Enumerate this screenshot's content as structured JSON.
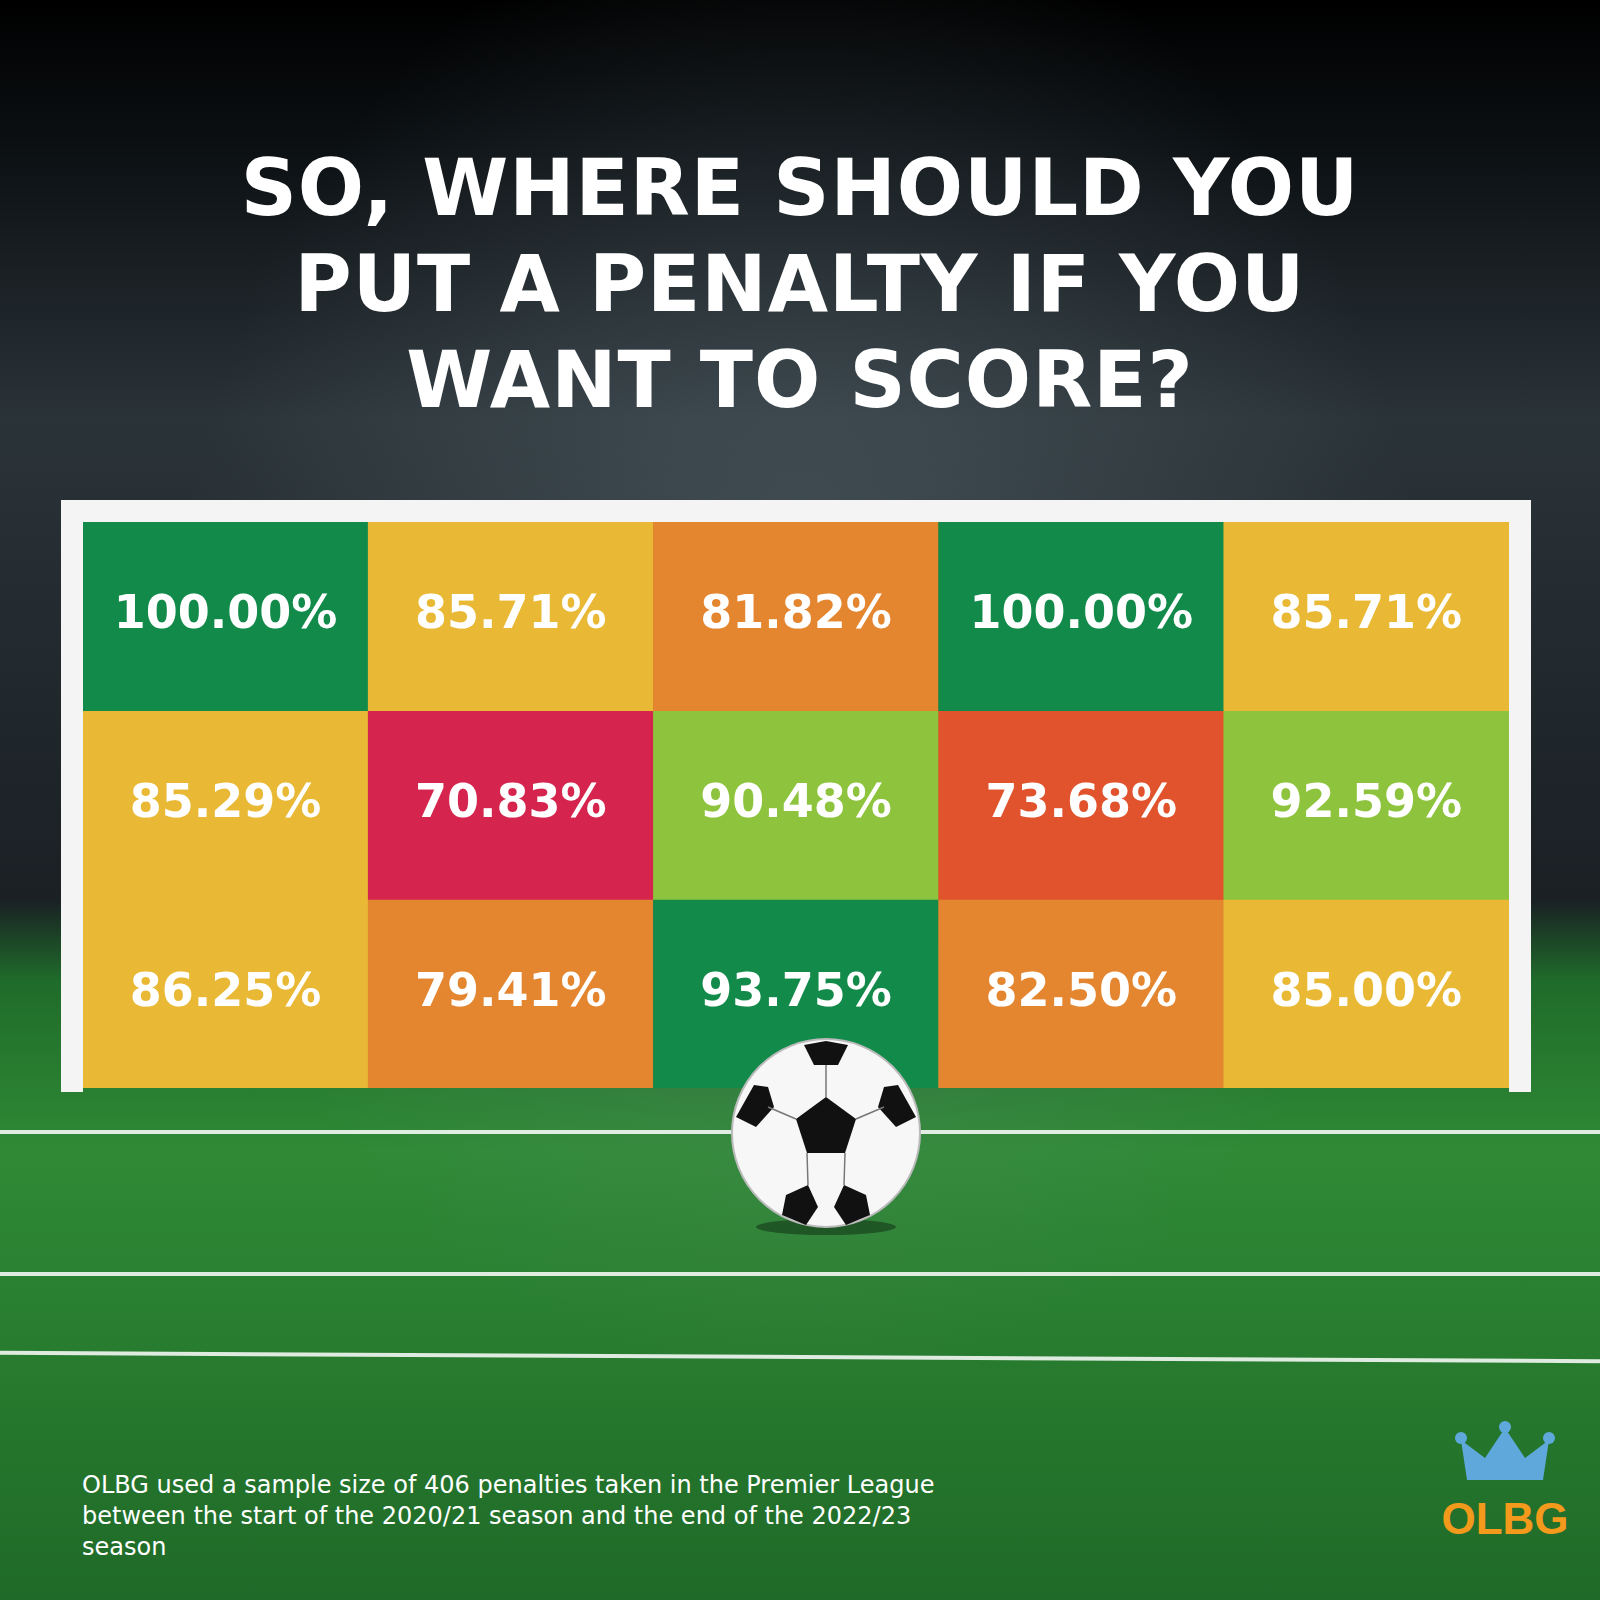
{
  "chart_data": {
    "type": "heatmap",
    "title": "SO, WHERE SHOULD YOU PUT A PENALTY IF YOU WANT TO SCORE?",
    "cells": [
      [
        100.0,
        85.71,
        81.82,
        100.0,
        85.71
      ],
      [
        85.29,
        70.83,
        90.48,
        73.68,
        92.59
      ],
      [
        86.25,
        79.41,
        93.75,
        82.5,
        85.0
      ]
    ],
    "value_labels": [
      [
        "100.00%",
        "85.71%",
        "81.82%",
        "100.00%",
        "85.71%"
      ],
      [
        "85.29%",
        "70.83%",
        "90.48%",
        "73.68%",
        "92.59%"
      ],
      [
        "86.25%",
        "79.41%",
        "93.75%",
        "82.50%",
        "85.00%"
      ]
    ],
    "colors": [
      [
        "#128a4a",
        "#e9b834",
        "#e4852f",
        "#128a4a",
        "#e9b834"
      ],
      [
        "#e9b834",
        "#d5254f",
        "#8ec43d",
        "#e0532c",
        "#8ec43d"
      ],
      [
        "#e9b834",
        "#e4852f",
        "#128a4a",
        "#e4852f",
        "#e9b834"
      ]
    ],
    "data_labels": true,
    "tick_labels": false
  },
  "footnote": "OLBG used a sample size of 406 penalties taken in the Premier League between the start of the 2020/21 season and the end of the 2022/23 season",
  "logo": "OLBG"
}
